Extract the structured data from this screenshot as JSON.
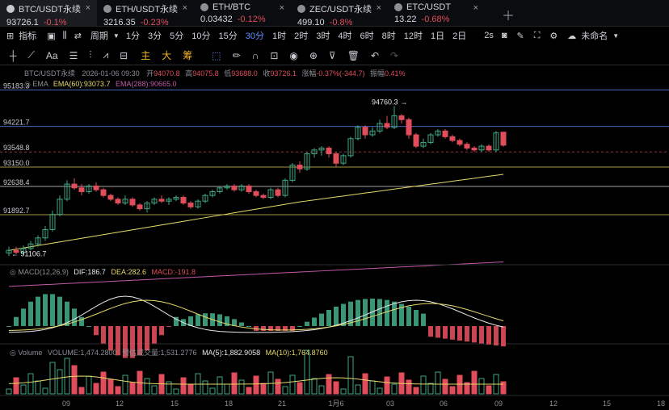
{
  "tabs": [
    {
      "name": "BTC/USDT永续",
      "price": "93726.1",
      "change": "-0.1%",
      "active": true
    },
    {
      "name": "ETH/USDT永续",
      "price": "3216.35",
      "change": "-0.23%"
    },
    {
      "name": "ETH/BTC",
      "price": "0.03432",
      "change": "-0.12%"
    },
    {
      "name": "ZEC/USDT永续",
      "price": "499.10",
      "change": "-0.8%"
    },
    {
      "name": "ETC/USDT",
      "price": "13.22",
      "change": "-0.68%"
    }
  ],
  "toolbar": {
    "indicators_label": "指标",
    "period_label": "周期",
    "intervals": [
      "1分",
      "3分",
      "5分",
      "10分",
      "15分",
      "30分",
      "1时",
      "2时",
      "3时",
      "4时",
      "6时",
      "8时",
      "12时",
      "1日",
      "2日"
    ],
    "active_interval": "30分",
    "refresh": "2s",
    "layout_name": "未命名"
  },
  "drawing_tools": {
    "main": "主",
    "big": "大",
    "chip": "筹"
  },
  "chart_data": {
    "type": "candlestick",
    "symbol": "BTC/USDT永续",
    "info": {
      "date": "2026-01-06 09:30",
      "open_label": "开",
      "open": "94070.8",
      "high_label": "高",
      "high": "94075.8",
      "low_label": "低",
      "low": "93688.0",
      "close_label": "收",
      "close": "93726.1",
      "change_label": "涨幅",
      "change": "-0.37%(-344.7)",
      "amp_label": "振幅",
      "amp": "0.41%"
    },
    "ema": {
      "label": "EMA",
      "ema60": "EMA(60):93073.7",
      "ema288": "EMA(288):90665.0"
    },
    "price_levels": [
      "95183.3",
      "94221.7",
      "93548.8",
      "93150.0",
      "92638.4",
      "91892.7"
    ],
    "high_marker": "94760.3",
    "low_marker": "91106.7",
    "ylim": [
      90700,
      95300
    ],
    "candles": [
      [
        90880,
        90950,
        90800,
        91050
      ],
      [
        90950,
        90900,
        90850,
        91050
      ],
      [
        90900,
        91000,
        90820,
        91080
      ],
      [
        91000,
        91120,
        90950,
        91200
      ],
      [
        91120,
        91280,
        91050,
        91350
      ],
      [
        91280,
        91500,
        91200,
        91600
      ],
      [
        91500,
        91900,
        91450,
        92000
      ],
      [
        91900,
        92300,
        91850,
        92400
      ],
      [
        92300,
        92700,
        92250,
        92800
      ],
      [
        92700,
        92600,
        92550,
        92850
      ],
      [
        92600,
        92500,
        92400,
        92700
      ],
      [
        92500,
        92650,
        92450,
        92700
      ],
      [
        92650,
        92550,
        92500,
        92750
      ],
      [
        92550,
        92400,
        92350,
        92600
      ],
      [
        92400,
        92300,
        92250,
        92450
      ],
      [
        92300,
        92200,
        92150,
        92350
      ],
      [
        92200,
        92300,
        92150,
        92400
      ],
      [
        92300,
        92150,
        92100,
        92350
      ],
      [
        92150,
        92050,
        92000,
        92200
      ],
      [
        92050,
        92200,
        91950,
        92250
      ],
      [
        92200,
        92300,
        92150,
        92350
      ],
      [
        92300,
        92250,
        92200,
        92400
      ],
      [
        92250,
        92300,
        92150,
        92350
      ],
      [
        92300,
        92350,
        92250,
        92400
      ],
      [
        92350,
        92200,
        92150,
        92400
      ],
      [
        92200,
        92100,
        92050,
        92250
      ],
      [
        92100,
        92250,
        92050,
        92300
      ],
      [
        92250,
        92400,
        92200,
        92450
      ],
      [
        92400,
        92500,
        92350,
        92550
      ],
      [
        92500,
        92600,
        92450,
        92650
      ],
      [
        92600,
        92650,
        92550,
        92700
      ],
      [
        92650,
        92550,
        92500,
        92700
      ],
      [
        92550,
        92650,
        92500,
        92700
      ],
      [
        92650,
        92500,
        92450,
        92700
      ],
      [
        92500,
        92400,
        92350,
        92550
      ],
      [
        92400,
        92350,
        92300,
        92450
      ],
      [
        92350,
        92550,
        92300,
        92600
      ],
      [
        92550,
        92400,
        92350,
        92600
      ],
      [
        92400,
        92800,
        92350,
        92850
      ],
      [
        92800,
        93200,
        92750,
        93250
      ],
      [
        93200,
        93100,
        93000,
        93300
      ],
      [
        93100,
        93500,
        93050,
        93550
      ],
      [
        93500,
        93600,
        93400,
        93650
      ],
      [
        93600,
        93650,
        93450,
        93700
      ],
      [
        93650,
        93500,
        93400,
        93700
      ],
      [
        93500,
        93250,
        93150,
        93550
      ],
      [
        93250,
        93450,
        93200,
        93500
      ],
      [
        93450,
        93900,
        93400,
        93950
      ],
      [
        93900,
        94200,
        93850,
        94250
      ],
      [
        94200,
        94000,
        93900,
        94250
      ],
      [
        94000,
        94100,
        93950,
        94200
      ],
      [
        94100,
        94300,
        94050,
        94400
      ],
      [
        94300,
        94200,
        94150,
        94500
      ],
      [
        94200,
        94500,
        94150,
        94760
      ],
      [
        94500,
        94400,
        94300,
        94550
      ],
      [
        94400,
        94000,
        93900,
        94450
      ],
      [
        94000,
        93700,
        93650,
        94050
      ],
      [
        93700,
        93800,
        93650,
        93900
      ],
      [
        93800,
        94000,
        93750,
        94050
      ],
      [
        94000,
        94100,
        93950,
        94150
      ],
      [
        94100,
        93950,
        93900,
        94150
      ],
      [
        93950,
        93850,
        93800,
        94000
      ],
      [
        93850,
        93750,
        93700,
        93900
      ],
      [
        93750,
        93650,
        93600,
        93800
      ],
      [
        93650,
        93600,
        93550,
        93700
      ],
      [
        93600,
        93700,
        93550,
        93750
      ],
      [
        93700,
        93600,
        93550,
        93750
      ],
      [
        93600,
        94050,
        93550,
        94100
      ],
      [
        94070,
        93726,
        93688,
        94076
      ]
    ],
    "macd": {
      "label": "MACD(12,26,9)",
      "dif": "DIF:186.7",
      "dea": "DEA:282.6",
      "macd": "MACD:-191.8"
    },
    "volume": {
      "label": "Volume",
      "volume": "VOLUME:1,474.2800",
      "est": "预估成交量:1,531.2776",
      "ma5": "MA(5):1,882.9058",
      "ma10": "MA(10):1,764.8760"
    },
    "x_ticks": [
      "09",
      "12",
      "15",
      "18",
      "21",
      "1月6",
      "03",
      "06",
      "09",
      "12",
      "15",
      "18"
    ]
  },
  "colors": {
    "up": "#3fa782",
    "down": "#e14d5a",
    "ema60": "#e8d96a",
    "ema288": "#c05aa8",
    "accent": "#5f8cff"
  }
}
